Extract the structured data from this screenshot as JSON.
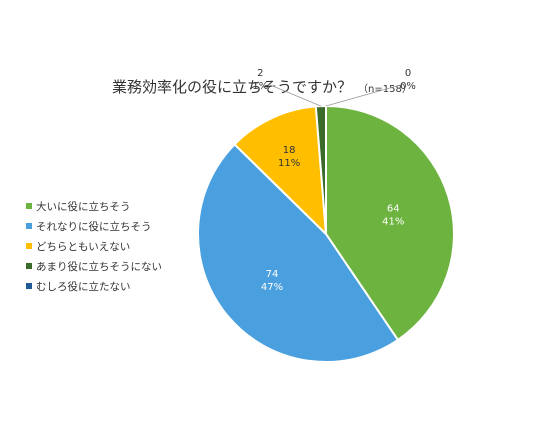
{
  "chart_data": {
    "type": "pie",
    "title": "業務効率化の役に立ちそうですか？",
    "subtitle": "（n=158）",
    "categories": [
      "大いに役に立ちそう",
      "それなりに役に立ちそう",
      "どちらともいえない",
      "あまり役に立ちそうにない",
      "むしろ役に立たない"
    ],
    "values": [
      64,
      74,
      18,
      2,
      0
    ],
    "percent_labels": [
      "41%",
      "47%",
      "11%",
      "1%",
      "0%"
    ],
    "colors": [
      "#6db33f",
      "#4a9fde",
      "#ffbf00",
      "#3a6b2a",
      "#1f5a96"
    ],
    "legend_position": "left"
  }
}
